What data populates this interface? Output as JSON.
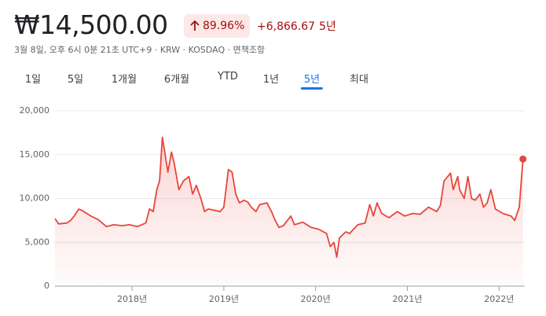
{
  "header": {
    "price": "₩14,500.00",
    "change_pct": "89.96%",
    "change_abs": "+6,866.67",
    "period": "5년",
    "subtitle": "3월 8일, 오후 6시 0분 21초 UTC+9 · KRW · KOSDAQ · 면책조항"
  },
  "tabs": {
    "items": [
      "1일",
      "5일",
      "1개월",
      "6개월",
      "YTD",
      "1년",
      "5년",
      "최대"
    ],
    "selected": 6
  },
  "chart_data": {
    "type": "line",
    "x": [
      2017.16,
      2017.2,
      2017.29,
      2017.33,
      2017.37,
      2017.42,
      2017.46,
      2017.55,
      2017.63,
      2017.72,
      2017.8,
      2017.89,
      2017.97,
      2018.06,
      2018.15,
      2018.19,
      2018.23,
      2018.27,
      2018.3,
      2018.33,
      2018.36,
      2018.39,
      2018.43,
      2018.46,
      2018.51,
      2018.56,
      2018.62,
      2018.66,
      2018.7,
      2018.75,
      2018.79,
      2018.83,
      2018.92,
      2018.96,
      2019.0,
      2019.05,
      2019.09,
      2019.13,
      2019.17,
      2019.22,
      2019.26,
      2019.3,
      2019.35,
      2019.39,
      2019.47,
      2019.52,
      2019.56,
      2019.6,
      2019.65,
      2019.73,
      2019.77,
      2019.86,
      2019.95,
      2020.03,
      2020.12,
      2020.16,
      2020.2,
      2020.23,
      2020.26,
      2020.33,
      2020.37,
      2020.46,
      2020.54,
      2020.59,
      2020.63,
      2020.67,
      2020.72,
      2020.8,
      2020.89,
      2020.97,
      2021.06,
      2021.14,
      2021.23,
      2021.32,
      2021.36,
      2021.4,
      2021.44,
      2021.47,
      2021.5,
      2021.55,
      2021.57,
      2021.62,
      2021.66,
      2021.7,
      2021.74,
      2021.79,
      2021.83,
      2021.87,
      2021.91,
      2021.96,
      2022.04,
      2022.13,
      2022.17,
      2022.22,
      2022.26
    ],
    "series": [
      {
        "color": "#e8453c",
        "values": [
          7700,
          7100,
          7200,
          7500,
          8000,
          8800,
          8600,
          8000,
          7600,
          6800,
          7000,
          6900,
          7000,
          6800,
          7200,
          8800,
          8500,
          11000,
          12000,
          17000,
          15000,
          13000,
          15300,
          14000,
          11000,
          12000,
          12500,
          10500,
          11500,
          10000,
          8500,
          8800,
          8600,
          8500,
          9000,
          13300,
          13000,
          10500,
          9500,
          9800,
          9600,
          9000,
          8500,
          9300,
          9500,
          8500,
          7500,
          6700,
          6900,
          8000,
          7000,
          7300,
          6700,
          6500,
          6000,
          4500,
          5000,
          3300,
          5500,
          6200,
          6000,
          7000,
          7200,
          9300,
          8000,
          9500,
          8300,
          7800,
          8500,
          8000,
          8300,
          8200,
          9000,
          8500,
          9200,
          12000,
          12500,
          12900,
          11000,
          12500,
          11000,
          10000,
          12500,
          10000,
          9800,
          10500,
          9000,
          9500,
          11000,
          8800,
          8300,
          8000,
          7500,
          9000,
          14500
        ]
      }
    ],
    "xlim": [
      2017.16,
      2022.28
    ],
    "xticks": [
      {
        "value": 2018,
        "label": "2018년"
      },
      {
        "value": 2019,
        "label": "2019년"
      },
      {
        "value": 2020,
        "label": "2020년"
      },
      {
        "value": 2021,
        "label": "2021년"
      },
      {
        "value": 2022,
        "label": "2022년"
      }
    ],
    "ylim": [
      0,
      20000
    ],
    "yticks": [
      0,
      {
        "value": 5000,
        "label": "5,000"
      },
      {
        "value": 10000,
        "label": "10,000"
      },
      {
        "value": 15000,
        "label": "15,000"
      },
      {
        "value": 20000,
        "label": "20,000"
      }
    ],
    "grid": true
  }
}
